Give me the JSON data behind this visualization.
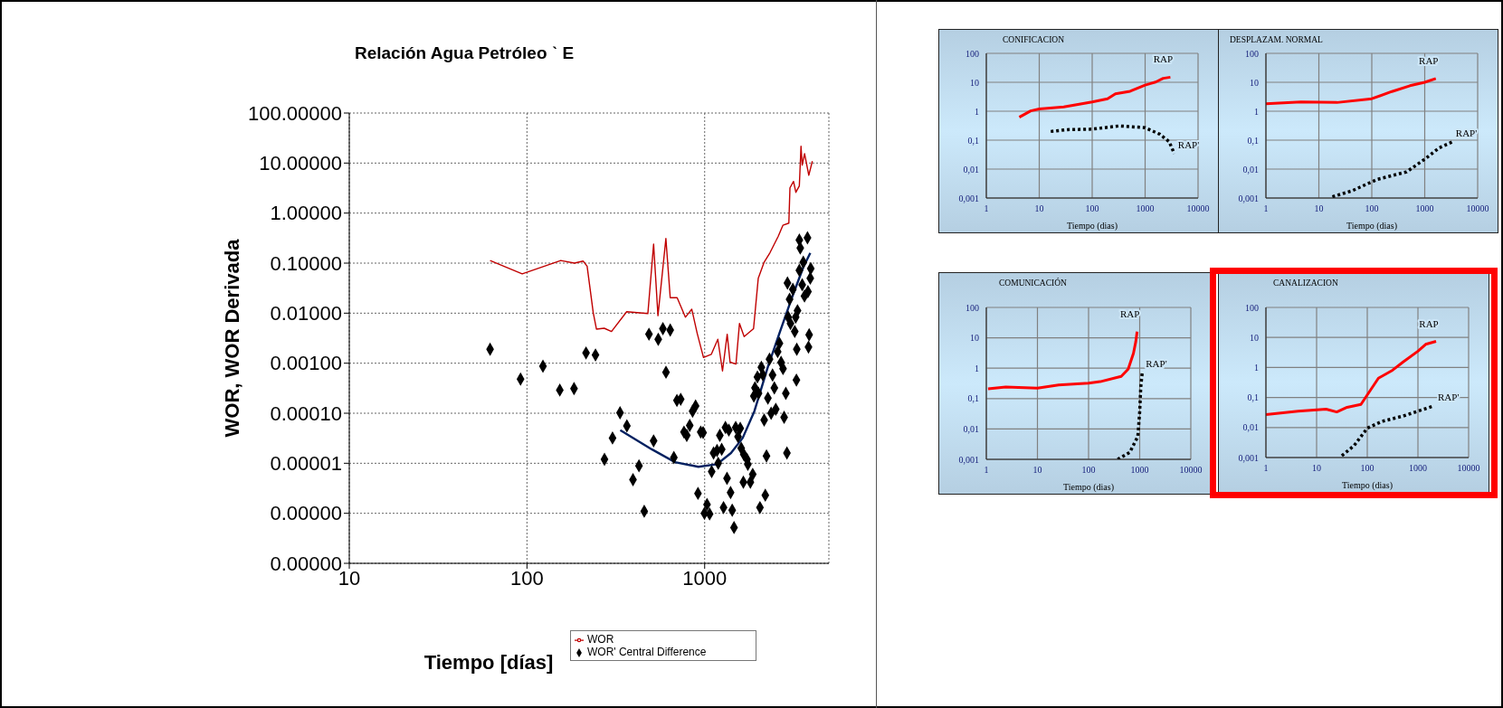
{
  "chart_data": [
    {
      "type": "line",
      "title": "Relación Agua Petróleo ˋ E",
      "xlabel": "Tiempo [días]",
      "ylabel": "WOR, WOR Derivada",
      "log": "xy",
      "grid": true,
      "legend": "bottom",
      "xlim": [
        10,
        5000
      ],
      "xticks": [
        10,
        100,
        1000
      ],
      "ylim": [
        1e-07,
        100
      ],
      "yticks": [
        {
          "value": 100,
          "label": "100.00000"
        },
        {
          "value": 10,
          "label": "10.00000"
        },
        {
          "value": 1,
          "label": "1.00000"
        },
        {
          "value": 0.1,
          "label": "0.10000"
        },
        {
          "value": 0.01,
          "label": "0.01000"
        },
        {
          "value": 0.001,
          "label": "0.00100"
        },
        {
          "value": 0.0001,
          "label": "0.00010"
        },
        {
          "value": 1e-05,
          "label": "0.00001"
        },
        {
          "value": 1e-06,
          "label": "0.00000"
        },
        {
          "value": 1e-07,
          "label": "0.00000"
        }
      ],
      "series": [
        {
          "name": "WOR",
          "color": "#c00000",
          "x": [
            62,
            94,
            155,
            185,
            207,
            218,
            236,
            246,
            272,
            299,
            364,
            479,
            516,
            546,
            605,
            640,
            700,
            779,
            846,
            907,
            985,
            1089,
            1186,
            1260,
            1339,
            1390,
            1500,
            1570,
            1668,
            1884,
            2003,
            2163,
            2334,
            2596,
            2755,
            2977,
            3020,
            3162,
            3260,
            3410,
            3485,
            3540,
            3650,
            3855,
            4036
          ],
          "values": [
            0.113,
            0.061,
            0.113,
            0.1,
            0.11,
            0.087,
            0.0102,
            0.0048,
            0.005,
            0.0043,
            0.0107,
            0.0098,
            0.24,
            0.0089,
            0.31,
            0.0204,
            0.0204,
            0.0083,
            0.012,
            0.004,
            0.0013,
            0.0015,
            0.003,
            0.0007,
            0.0038,
            0.00105,
            0.00096,
            0.0062,
            0.0034,
            0.0049,
            0.05,
            0.105,
            0.163,
            0.345,
            0.57,
            0.63,
            3.2,
            4.3,
            2.6,
            3.5,
            21.7,
            9.1,
            15.4,
            5.7,
            10.9
          ]
        },
        {
          "name": "WOR' Central Difference",
          "type": "scatter",
          "marker": "diamond",
          "color": "#000000",
          "x": [
            62,
            92,
            123,
            153,
            184,
            215,
            243,
            273,
            303,
            334,
            365,
            395,
            427,
            457,
            486,
            516,
            548,
            582,
            606,
            640,
            671,
            698,
            733,
            765,
            793,
            824,
            855,
            889,
            917,
            950,
            980,
            997,
            1031,
            1066,
            1095,
            1122,
            1174,
            1217,
            1247,
            1192,
            1277,
            1309,
            1336,
            1368,
            1399,
            1429,
            1463,
            1495,
            1541,
            1586,
            1606,
            1660,
            1651,
            1730,
            1750,
            1808,
            1864,
            1892,
            1919,
            1981,
            2010,
            2047,
            2085,
            2123,
            2162,
            2194,
            2228,
            2269,
            2317,
            2366,
            2410,
            2467,
            2513,
            2575,
            2636,
            2692,
            2761,
            2800,
            2863,
            2904,
            2951,
            3005,
            2924,
            3041,
            3135,
            3214,
            3252,
            3299,
            3330,
            3284,
            3411,
            3452,
            3411,
            3540,
            3590,
            3645,
            3790,
            3813,
            3930,
            3953,
            3873,
            3840
          ],
          "values": [
            0.0019,
            0.00048,
            0.00087,
            0.00029,
            0.00031,
            0.0016,
            0.00146,
            1.2e-05,
            3.2e-05,
            0.000102,
            5.6e-05,
            4.7e-06,
            8.9e-06,
            1.1e-06,
            0.0038,
            2.8e-05,
            0.003,
            0.0049,
            0.00066,
            0.0046,
            1.3e-05,
            0.00018,
            0.00019,
            4.2e-05,
            3.6e-05,
            5.7e-05,
            0.00011,
            0.00014,
            2.5e-06,
            4.2e-05,
            4.1e-05,
            1e-06,
            1.5e-06,
            9.7e-07,
            6.8e-06,
            1.6e-05,
            1.8e-05,
            3.6e-05,
            1.9e-05,
            1e-05,
            1.3e-06,
            5.2e-05,
            5e-06,
            4.6e-05,
            2.6e-06,
            1.15e-06,
            5.2e-07,
            5.2e-05,
            3.4e-05,
            5e-05,
            2e-05,
            1.5e-05,
            4.2e-06,
            1.2e-05,
            9.5e-06,
            4.2e-06,
            6e-06,
            0.00022,
            0.00032,
            0.00053,
            0.00025,
            1.3e-06,
            0.00083,
            0.00059,
            7.3e-05,
            2.3e-06,
            1.4e-05,
            0.0002,
            0.0012,
            0.0001,
            0.00058,
            0.00032,
            0.00012,
            0.0017,
            0.0025,
            0.00104,
            0.00078,
            8.3e-05,
            0.00025,
            1.6e-05,
            0.0083,
            0.019,
            0.04,
            0.0062,
            0.03,
            0.0043,
            0.0083,
            0.0019,
            0.0112,
            0.00046,
            0.072,
            0.2,
            0.29,
            0.037,
            0.104,
            0.022,
            0.32,
            0.027,
            0.05,
            0.078,
            0.0037,
            0.0021
          ]
        },
        {
          "color": "#002060",
          "x": [
            335,
            504,
            681,
            922,
            1174,
            1407,
            1637,
            1905,
            2280,
            2656,
            3093,
            3590,
            3930
          ],
          "values": [
            4.6e-05,
            1.9e-05,
            1.05e-05,
            8.5e-06,
            9.6e-06,
            1.6e-05,
            3.2e-05,
            0.00011,
            0.00089,
            0.0043,
            0.02,
            0.083,
            0.16
          ]
        }
      ]
    },
    {
      "type": "line",
      "title": "CONIFICACION",
      "xlabel": "Tiempo (dias)",
      "log": "xy",
      "grid": true,
      "xlim": [
        1,
        10000
      ],
      "xticks": [
        1,
        10,
        100,
        1000,
        10000
      ],
      "ylim": [
        0.001,
        100
      ],
      "yticks": [
        {
          "value": 0.001,
          "label": "0,001"
        },
        {
          "value": 0.01,
          "label": "0,01"
        },
        {
          "value": 0.1,
          "label": "0,1"
        },
        1,
        10,
        100
      ],
      "series": [
        {
          "name": "RAP",
          "color": "#ff0000",
          "x": [
            4.2,
            6.9,
            10,
            29,
            100,
            195,
            275,
            520,
            1000,
            1580,
            2190,
            3000
          ],
          "values": [
            0.62,
            1.03,
            1.2,
            1.4,
            2.1,
            2.7,
            4,
            4.9,
            8,
            10.2,
            13.7,
            15
          ]
        },
        {
          "name": "RAP'",
          "color": "#000000",
          "line_style": "dotted",
          "x": [
            16.5,
            34,
            100,
            323,
            1000,
            1890,
            2840,
            3570
          ],
          "values": [
            0.2,
            0.23,
            0.24,
            0.31,
            0.27,
            0.16,
            0.089,
            0.034
          ]
        }
      ]
    },
    {
      "type": "line",
      "title": "DESPLAZAM. NORMAL",
      "xlabel": "Tiempo (dias)",
      "log": "xy",
      "grid": true,
      "xlim": [
        1,
        10000
      ],
      "xticks": [
        1,
        10,
        100,
        1000,
        10000
      ],
      "ylim": [
        0.001,
        100
      ],
      "yticks": [
        {
          "value": 0.001,
          "label": "0,001"
        },
        {
          "value": 0.01,
          "label": "0,01"
        },
        {
          "value": 0.1,
          "label": "0,1"
        },
        1,
        10,
        100
      ],
      "series": [
        {
          "name": "RAP",
          "color": "#ff0000",
          "x": [
            1,
            4.6,
            22,
            100,
            240,
            525,
            1000,
            1620
          ],
          "values": [
            1.8,
            2.1,
            2,
            2.7,
            4.8,
            7.6,
            10,
            13.5
          ]
        },
        {
          "name": "RAP'",
          "color": "#000000",
          "line_style": "dotted",
          "x": [
            18,
            43,
            126,
            455,
            1000,
            1900,
            3300
          ],
          "values": [
            0.0011,
            0.0018,
            0.0044,
            0.008,
            0.022,
            0.055,
            0.087
          ]
        }
      ]
    },
    {
      "type": "line",
      "title": "COMUNICACIÓN",
      "xlabel": "Tiempo (dias)",
      "log": "xy",
      "grid": true,
      "xlim": [
        1,
        10000
      ],
      "xticks": [
        1,
        10,
        100,
        1000,
        10000
      ],
      "ylim": [
        0.001,
        100
      ],
      "yticks": [
        {
          "value": 0.001,
          "label": "0,001"
        },
        {
          "value": 0.01,
          "label": "0,01"
        },
        {
          "value": 0.1,
          "label": "0,1"
        },
        1,
        10,
        100
      ],
      "series": [
        {
          "name": "RAP",
          "color": "#ff0000",
          "x": [
            1.08,
            2.4,
            10,
            26,
            100,
            168,
            435,
            595,
            755,
            840,
            890
          ],
          "values": [
            0.21,
            0.24,
            0.22,
            0.28,
            0.32,
            0.36,
            0.54,
            0.93,
            3.1,
            7.6,
            16
          ]
        },
        {
          "name": "RAP'",
          "color": "#000000",
          "line_style": "dotted",
          "x": [
            371,
            640,
            920,
            1000,
            1050,
            1120
          ],
          "values": [
            0.001,
            0.0017,
            0.0057,
            0.037,
            0.24,
            0.71
          ]
        }
      ]
    },
    {
      "type": "line",
      "title": "CANALIZACION",
      "xlabel": "Tiempo (dias)",
      "log": "xy",
      "grid": true,
      "xlim": [
        1,
        10000
      ],
      "xticks": [
        1,
        10,
        100,
        1000,
        10000
      ],
      "ylim": [
        0.001,
        100
      ],
      "yticks": [
        {
          "value": 0.001,
          "label": "0,001"
        },
        {
          "value": 0.01,
          "label": "0,01"
        },
        {
          "value": 0.1,
          "label": "0,1"
        },
        1,
        10,
        100
      ],
      "series": [
        {
          "name": "RAP",
          "color": "#ff0000",
          "x": [
            1,
            4.3,
            15.4,
            25,
            40,
            75,
            166,
            315,
            505,
            1000,
            1420,
            2280
          ],
          "values": [
            0.027,
            0.035,
            0.041,
            0.033,
            0.047,
            0.059,
            0.44,
            0.81,
            1.5,
            3.5,
            5.9,
            7.4
          ]
        },
        {
          "name": "RAP'",
          "color": "#000000",
          "line_style": "dotted",
          "x": [
            31.5,
            55,
            100,
            195,
            505,
            1000,
            2100
          ],
          "values": [
            0.00115,
            0.0025,
            0.0095,
            0.016,
            0.024,
            0.035,
            0.053
          ]
        }
      ]
    }
  ]
}
